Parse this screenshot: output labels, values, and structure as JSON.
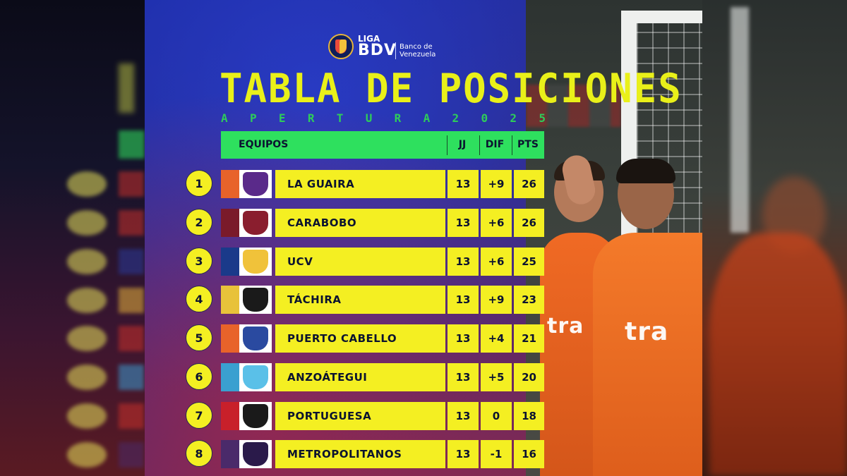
{
  "logo": {
    "liga": "LIGA",
    "bdv": "BDV",
    "sponsor_line1": "Banco de",
    "sponsor_line2": "Venezuela"
  },
  "title": "TABLA DE POSICIONES",
  "subtitle_letters": [
    "A",
    "P",
    "E",
    "R",
    "T",
    "U",
    "R",
    "A",
    "2",
    "0",
    "2",
    "5"
  ],
  "table": {
    "headers": {
      "team": "EQUIPOS",
      "jj": "JJ",
      "dif": "DIF",
      "pts": "PTS"
    },
    "rows": [
      {
        "pos": "1",
        "team": "LA GUAIRA",
        "jj": "13",
        "dif": "+9",
        "pts": "26",
        "stripe": "#e8632a",
        "crest": "#5a2a8a"
      },
      {
        "pos": "2",
        "team": "CARABOBO",
        "jj": "13",
        "dif": "+6",
        "pts": "26",
        "stripe": "#7a1a2a",
        "crest": "#8a1e2e"
      },
      {
        "pos": "3",
        "team": "UCV",
        "jj": "13",
        "dif": "+6",
        "pts": "25",
        "stripe": "#1a3a8a",
        "crest": "#f0c23a"
      },
      {
        "pos": "4",
        "team": "TÁCHIRA",
        "jj": "13",
        "dif": "+9",
        "pts": "23",
        "stripe": "#e8c23a",
        "crest": "#1a1a1a"
      },
      {
        "pos": "5",
        "team": "PUERTO CABELLO",
        "jj": "13",
        "dif": "+4",
        "pts": "21",
        "stripe": "#e8632a",
        "crest": "#2a4aa0"
      },
      {
        "pos": "6",
        "team": "ANZOÁTEGUI",
        "jj": "13",
        "dif": "+5",
        "pts": "20",
        "stripe": "#3aa0d0",
        "crest": "#5ac0e8"
      },
      {
        "pos": "7",
        "team": "PORTUGUESA",
        "jj": "13",
        "dif": "0",
        "pts": "18",
        "stripe": "#c8202a",
        "crest": "#1a1a1a"
      },
      {
        "pos": "8",
        "team": "METROPOLITANOS",
        "jj": "13",
        "dif": "-1",
        "pts": "16",
        "stripe": "#4a2a6a",
        "crest": "#2a1a4a"
      }
    ]
  },
  "photo": {
    "sponsor_left": "tra",
    "sponsor_right": "tra"
  },
  "colors": {
    "accent_yellow": "#f4ef22",
    "accent_green": "#2ee05e",
    "title_yellow": "#e9f019",
    "dark_text": "#0b1330"
  }
}
